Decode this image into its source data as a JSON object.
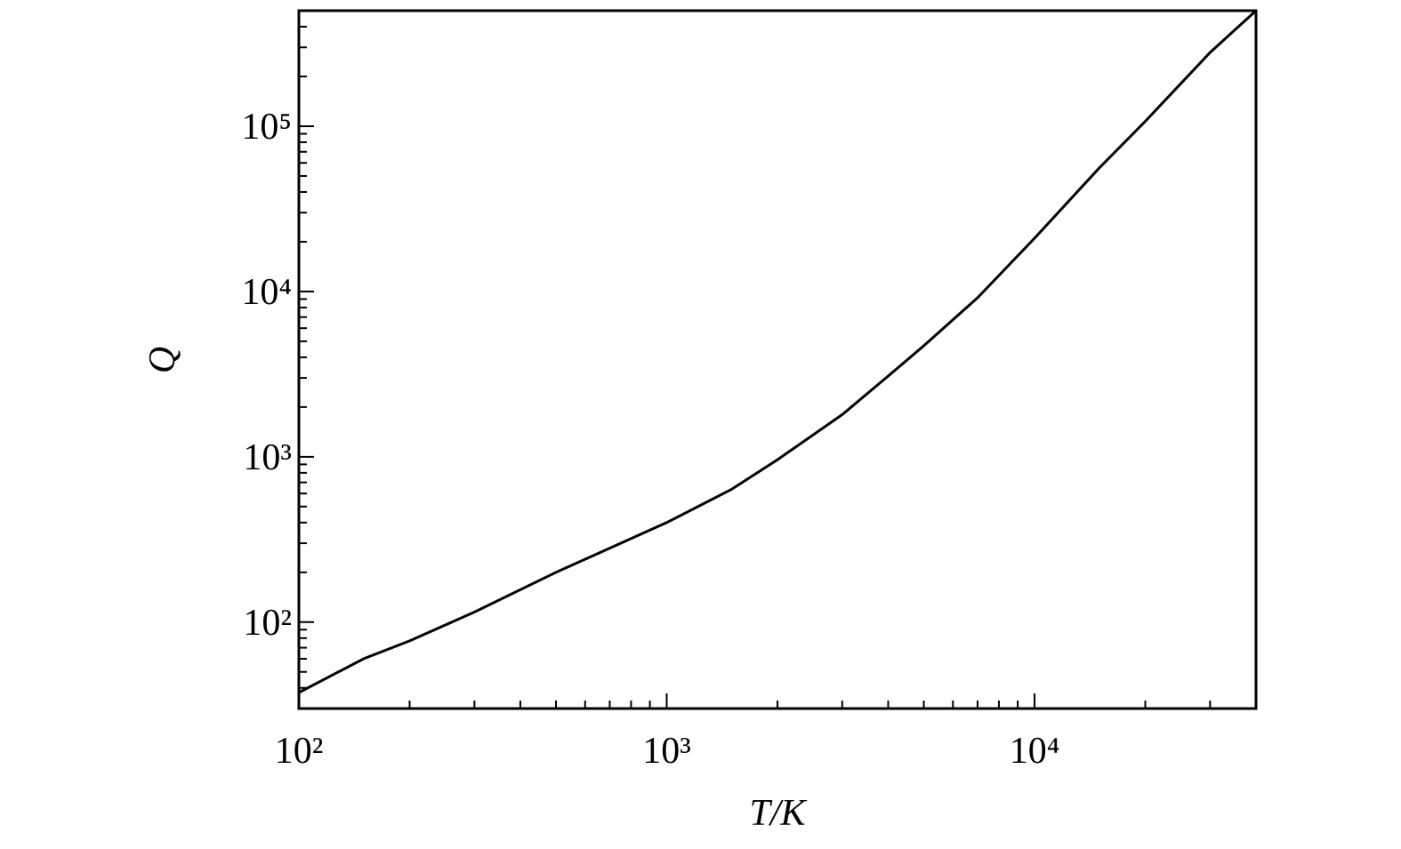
{
  "chart_data": {
    "type": "line",
    "xlabel": "T/K",
    "ylabel": "Q",
    "x": [
      100,
      150,
      200,
      300,
      500,
      700,
      1000,
      1500,
      2000,
      3000,
      4000,
      5000,
      7000,
      10000,
      15000,
      20000,
      30000,
      40000
    ],
    "values": [
      37.5,
      60,
      77,
      115,
      200,
      280,
      400,
      635,
      960,
      1800,
      3080,
      4700,
      9170,
      21000,
      56000,
      107000,
      279000,
      500000
    ],
    "color": "#000000",
    "xscale": "log",
    "yscale": "log",
    "xlim": [
      100,
      40000
    ],
    "ylim": [
      30,
      500000
    ],
    "xticks": [
      {
        "value": 100,
        "label": "10²"
      },
      {
        "value": 1000,
        "label": "10³"
      },
      {
        "value": 10000,
        "label": "10⁴"
      }
    ],
    "yticks": [
      {
        "value": 100,
        "label": "10²"
      },
      {
        "value": 1000,
        "label": "10³"
      },
      {
        "value": 10000,
        "label": "10⁴"
      },
      {
        "value": 100000,
        "label": "10⁵"
      }
    ],
    "xminorticks": [
      200,
      300,
      400,
      500,
      600,
      700,
      800,
      900,
      2000,
      3000,
      4000,
      5000,
      6000,
      7000,
      8000,
      9000,
      20000,
      30000
    ],
    "yminorticks": [
      40,
      50,
      60,
      70,
      80,
      90,
      200,
      300,
      400,
      500,
      600,
      700,
      800,
      900,
      2000,
      3000,
      4000,
      5000,
      6000,
      7000,
      8000,
      9000,
      20000,
      30000,
      40000,
      50000,
      60000,
      70000,
      80000,
      90000,
      200000,
      300000,
      400000,
      500000
    ],
    "grid": false
  }
}
